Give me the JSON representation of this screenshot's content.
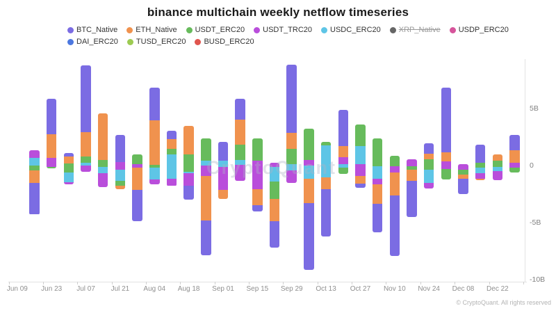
{
  "title": "binance multichain weekly netflow timeseries",
  "watermark": "CryptoQuant",
  "footer": "© CryptoQuant. All rights reserved",
  "legend": {
    "items": [
      {
        "label": "BTC_Native",
        "color": "#7b6ce3",
        "disabled": false
      },
      {
        "label": "ETH_Native",
        "color": "#f0924e",
        "disabled": false
      },
      {
        "label": "USDT_ERC20",
        "color": "#67bb5c",
        "disabled": false
      },
      {
        "label": "USDT_TRC20",
        "color": "#b94edb",
        "disabled": false
      },
      {
        "label": "USDC_ERC20",
        "color": "#5ec5e6",
        "disabled": false
      },
      {
        "label": "XRP_Native",
        "color": "#666666",
        "disabled": true
      },
      {
        "label": "USDP_ERC20",
        "color": "#d6549b",
        "disabled": false
      },
      {
        "label": "DAI_ERC20",
        "color": "#4c78e0",
        "disabled": false
      },
      {
        "label": "TUSD_ERC20",
        "color": "#9dcb52",
        "disabled": false
      },
      {
        "label": "BUSD_ERC20",
        "color": "#e0554e",
        "disabled": false
      }
    ]
  },
  "chart_data": {
    "type": "bar",
    "stacked": true,
    "title": "binance multichain weekly netflow timeseries",
    "xlabel": "",
    "ylabel": "",
    "unit": "B = billions (netflow)",
    "ylim": [
      -10.5,
      9.5
    ],
    "grid": false,
    "legend_position": "top",
    "y_ticks": [
      {
        "label": "5B",
        "value": 5
      },
      {
        "label": "0",
        "value": 0
      },
      {
        "label": "-5B",
        "value": -5
      },
      {
        "label": "-10B",
        "value": -10
      }
    ],
    "x_labels_shown": [
      "Jun 09",
      "Jun 23",
      "Jul 07",
      "Jul 21",
      "Aug 04",
      "Aug 18",
      "Sep 01",
      "Sep 15",
      "Sep 29",
      "Oct 13",
      "Oct 27",
      "Nov 10",
      "Nov 24",
      "Dec 08",
      "Dec 22"
    ],
    "series_colors": {
      "BTC_Native": "#7b6ce3",
      "ETH_Native": "#f0924e",
      "USDT_ERC20": "#67bb5c",
      "USDT_TRC20": "#b94edb",
      "USDC_ERC20": "#5ec5e6",
      "XRP_Native": "#666666",
      "USDP_ERC20": "#d6549b",
      "DAI_ERC20": "#4c78e0",
      "TUSD_ERC20": "#9dcb52",
      "BUSD_ERC20": "#e0554e"
    },
    "note": "Each bar: 'top' = stack-top value in billions above zero; 'segments' listed top-to-bottom with magnitude in billions. Portions below the running zero line are net outflows (negative).",
    "bars": [
      {
        "week": "Jun 09",
        "top": 0,
        "segments": []
      },
      {
        "week": "Jun 16",
        "top": 1.35,
        "segments": [
          {
            "series": "USDT_TRC20",
            "value": 0.65
          },
          {
            "series": "USDC_ERC20",
            "value": 0.7
          },
          {
            "series": "USDT_ERC20",
            "value": 0.45
          },
          {
            "series": "ETH_Native",
            "value": 1.05
          },
          {
            "series": "BTC_Native",
            "value": 2.8
          }
        ]
      },
      {
        "week": "Jun 23",
        "top": 5.85,
        "segments": [
          {
            "series": "BTC_Native",
            "value": 3.1
          },
          {
            "series": "ETH_Native",
            "value": 2.1
          },
          {
            "series": "USDT_TRC20",
            "value": 0.75
          },
          {
            "series": "USDT_ERC20",
            "value": 0.15
          }
        ]
      },
      {
        "week": "Jun 30",
        "top": 1.1,
        "segments": [
          {
            "series": "BTC_Native",
            "value": 0.3
          },
          {
            "series": "ETH_Native",
            "value": 0.6
          },
          {
            "series": "USDT_ERC20",
            "value": 0.8
          },
          {
            "series": "USDC_ERC20",
            "value": 0.85
          },
          {
            "series": "USDT_TRC20",
            "value": 0.2
          }
        ]
      },
      {
        "week": "Jul 07",
        "top": 8.8,
        "segments": [
          {
            "series": "BTC_Native",
            "value": 5.9
          },
          {
            "series": "ETH_Native",
            "value": 2.1
          },
          {
            "series": "USDT_ERC20",
            "value": 0.55
          },
          {
            "series": "USDC_ERC20",
            "value": 0.25
          },
          {
            "series": "USDT_TRC20",
            "value": 0.55
          }
        ]
      },
      {
        "week": "Jul 14",
        "top": 4.6,
        "segments": [
          {
            "series": "ETH_Native",
            "value": 4.1
          },
          {
            "series": "USDT_ERC20",
            "value": 0.6
          },
          {
            "series": "USDC_ERC20",
            "value": 0.55
          },
          {
            "series": "USDT_TRC20",
            "value": 1.25
          }
        ]
      },
      {
        "week": "Jul 21",
        "top": 2.7,
        "segments": [
          {
            "series": "BTC_Native",
            "value": 2.4
          },
          {
            "series": "USDT_TRC20",
            "value": 0.65
          },
          {
            "series": "USDC_ERC20",
            "value": 1.0
          },
          {
            "series": "USDT_ERC20",
            "value": 0.4
          },
          {
            "series": "ETH_Native",
            "value": 0.35
          }
        ]
      },
      {
        "week": "Jul 28",
        "top": 0.95,
        "segments": [
          {
            "series": "USDT_ERC20",
            "value": 0.85
          },
          {
            "series": "USDT_TRC20",
            "value": 0.3
          },
          {
            "series": "ETH_Native",
            "value": 1.95
          },
          {
            "series": "BTC_Native",
            "value": 2.75
          }
        ]
      },
      {
        "week": "Aug 04",
        "top": 6.85,
        "segments": [
          {
            "series": "BTC_Native",
            "value": 2.9
          },
          {
            "series": "ETH_Native",
            "value": 3.9
          },
          {
            "series": "USDT_ERC20",
            "value": 0.25
          },
          {
            "series": "USDC_ERC20",
            "value": 1.05
          },
          {
            "series": "USDT_TRC20",
            "value": 0.4
          }
        ]
      },
      {
        "week": "Aug 11",
        "top": 3.05,
        "segments": [
          {
            "series": "BTC_Native",
            "value": 0.75
          },
          {
            "series": "ETH_Native",
            "value": 0.85
          },
          {
            "series": "USDT_ERC20",
            "value": 0.45
          },
          {
            "series": "USDC_ERC20",
            "value": 2.15
          },
          {
            "series": "USDT_TRC20",
            "value": 0.65
          }
        ]
      },
      {
        "week": "Aug 18",
        "top": 3.45,
        "segments": [
          {
            "series": "ETH_Native",
            "value": 2.5
          },
          {
            "series": "USDT_ERC20",
            "value": 1.5
          },
          {
            "series": "USDC_ERC20",
            "value": 0.15
          },
          {
            "series": "USDT_TRC20",
            "value": 1.1
          },
          {
            "series": "BTC_Native",
            "value": 1.2
          }
        ]
      },
      {
        "week": "Aug 25",
        "top": 2.4,
        "segments": [
          {
            "series": "USDT_ERC20",
            "value": 1.95
          },
          {
            "series": "USDC_ERC20",
            "value": 0.45
          },
          {
            "series": "USDT_TRC20",
            "value": 0.9
          },
          {
            "series": "ETH_Native",
            "value": 3.95
          },
          {
            "series": "BTC_Native",
            "value": 3.0
          }
        ]
      },
      {
        "week": "Sep 01",
        "top": 2.05,
        "segments": [
          {
            "series": "BTC_Native",
            "value": 1.6
          },
          {
            "series": "USDC_ERC20",
            "value": 0.6
          },
          {
            "series": "USDT_TRC20",
            "value": 2.0
          },
          {
            "series": "ETH_Native",
            "value": 0.75
          }
        ]
      },
      {
        "week": "Sep 08",
        "top": 5.85,
        "segments": [
          {
            "series": "BTC_Native",
            "value": 1.85
          },
          {
            "series": "ETH_Native",
            "value": 2.15
          },
          {
            "series": "USDT_ERC20",
            "value": 1.35
          },
          {
            "series": "USDC_ERC20",
            "value": 0.45
          },
          {
            "series": "USDT_TRC20",
            "value": 1.4
          }
        ]
      },
      {
        "week": "Sep 15",
        "top": 2.4,
        "segments": [
          {
            "series": "USDT_ERC20",
            "value": 1.95
          },
          {
            "series": "USDT_TRC20",
            "value": 2.55
          },
          {
            "series": "ETH_Native",
            "value": 1.4
          },
          {
            "series": "BTC_Native",
            "value": 0.5
          }
        ]
      },
      {
        "week": "Sep 22",
        "top": 0.25,
        "segments": [
          {
            "series": "USDT_TRC20",
            "value": 0.4
          },
          {
            "series": "USDC_ERC20",
            "value": 1.25
          },
          {
            "series": "USDT_ERC20",
            "value": 1.5
          },
          {
            "series": "ETH_Native",
            "value": 2.0
          },
          {
            "series": "BTC_Native",
            "value": 2.3
          }
        ]
      },
      {
        "week": "Sep 29",
        "top": 8.85,
        "segments": [
          {
            "series": "BTC_Native",
            "value": 6.0
          },
          {
            "series": "ETH_Native",
            "value": 1.4
          },
          {
            "series": "USDT_ERC20",
            "value": 1.35
          },
          {
            "series": "USDC_ERC20",
            "value": 0.5
          },
          {
            "series": "USDT_TRC20",
            "value": 1.15
          }
        ]
      },
      {
        "week": "Oct 06",
        "top": 3.25,
        "segments": [
          {
            "series": "USDT_ERC20",
            "value": 2.75
          },
          {
            "series": "USDT_TRC20",
            "value": 0.5
          },
          {
            "series": "USDC_ERC20",
            "value": 1.15
          },
          {
            "series": "ETH_Native",
            "value": 2.15
          },
          {
            "series": "BTC_Native",
            "value": 5.85
          }
        ]
      },
      {
        "week": "Oct 13",
        "top": 2.05,
        "segments": [
          {
            "series": "USDT_ERC20",
            "value": 0.3
          },
          {
            "series": "USDC_ERC20",
            "value": 2.8
          },
          {
            "series": "ETH_Native",
            "value": 1.0
          },
          {
            "series": "BTC_Native",
            "value": 4.15
          }
        ]
      },
      {
        "week": "Oct 20",
        "top": 4.9,
        "segments": [
          {
            "series": "BTC_Native",
            "value": 3.2
          },
          {
            "series": "ETH_Native",
            "value": 1.0
          },
          {
            "series": "USDT_TRC20",
            "value": 0.55
          },
          {
            "series": "USDC_ERC20",
            "value": 0.35
          },
          {
            "series": "USDT_ERC20",
            "value": 0.55
          }
        ]
      },
      {
        "week": "Oct 27",
        "top": 3.6,
        "segments": [
          {
            "series": "USDT_ERC20",
            "value": 1.9
          },
          {
            "series": "USDC_ERC20",
            "value": 1.6
          },
          {
            "series": "USDT_TRC20",
            "value": 1.0
          },
          {
            "series": "ETH_Native",
            "value": 0.7
          },
          {
            "series": "BTC_Native",
            "value": 0.35
          }
        ]
      },
      {
        "week": "Nov 03",
        "top": 2.4,
        "segments": [
          {
            "series": "USDT_ERC20",
            "value": 2.45
          },
          {
            "series": "USDC_ERC20",
            "value": 1.1
          },
          {
            "series": "USDT_TRC20",
            "value": 0.5
          },
          {
            "series": "ETH_Native",
            "value": 1.7
          },
          {
            "series": "BTC_Native",
            "value": 2.5
          }
        ]
      },
      {
        "week": "Nov 10",
        "top": 0.85,
        "segments": [
          {
            "series": "USDT_ERC20",
            "value": 0.9
          },
          {
            "series": "USDT_TRC20",
            "value": 0.55
          },
          {
            "series": "ETH_Native",
            "value": 2.0
          },
          {
            "series": "BTC_Native",
            "value": 5.3
          }
        ]
      },
      {
        "week": "Nov 17",
        "top": 0.55,
        "segments": [
          {
            "series": "USDT_TRC20",
            "value": 0.6
          },
          {
            "series": "USDT_ERC20",
            "value": 0.3
          },
          {
            "series": "ETH_Native",
            "value": 1.0
          },
          {
            "series": "BTC_Native",
            "value": 3.15
          }
        ]
      },
      {
        "week": "Nov 24",
        "top": 1.95,
        "segments": [
          {
            "series": "BTC_Native",
            "value": 0.9
          },
          {
            "series": "ETH_Native",
            "value": 0.5
          },
          {
            "series": "USDT_ERC20",
            "value": 0.9
          },
          {
            "series": "USDC_ERC20",
            "value": 1.2
          },
          {
            "series": "USDT_TRC20",
            "value": 0.45
          }
        ]
      },
      {
        "week": "Dec 01",
        "top": 6.85,
        "segments": [
          {
            "series": "BTC_Native",
            "value": 5.7
          },
          {
            "series": "ETH_Native",
            "value": 0.8
          },
          {
            "series": "USDT_TRC20",
            "value": 0.65
          },
          {
            "series": "USDT_ERC20",
            "value": 0.95
          }
        ]
      },
      {
        "week": "Dec 08",
        "top": 0.1,
        "segments": [
          {
            "series": "USDT_TRC20",
            "value": 0.45
          },
          {
            "series": "USDT_ERC20",
            "value": 0.45
          },
          {
            "series": "ETH_Native",
            "value": 0.35
          },
          {
            "series": "BTC_Native",
            "value": 1.35
          }
        ]
      },
      {
        "week": "Dec 15",
        "top": 1.8,
        "segments": [
          {
            "series": "BTC_Native",
            "value": 1.55
          },
          {
            "series": "USDT_ERC20",
            "value": 0.45
          },
          {
            "series": "USDC_ERC20",
            "value": 0.45
          },
          {
            "series": "USDT_TRC20",
            "value": 0.5
          },
          {
            "series": "ETH_Native",
            "value": 0.15
          }
        ]
      },
      {
        "week": "Dec 22",
        "top": 1.0,
        "segments": [
          {
            "series": "ETH_Native",
            "value": 0.6
          },
          {
            "series": "USDT_ERC20",
            "value": 0.5
          },
          {
            "series": "USDC_ERC20",
            "value": 0.4
          },
          {
            "series": "USDT_TRC20",
            "value": 0.8
          }
        ]
      },
      {
        "week": "Dec 29",
        "top": 2.7,
        "segments": [
          {
            "series": "BTC_Native",
            "value": 1.35
          },
          {
            "series": "ETH_Native",
            "value": 1.1
          },
          {
            "series": "USDT_TRC20",
            "value": 0.45
          },
          {
            "series": "USDT_ERC20",
            "value": 0.4
          }
        ]
      }
    ]
  }
}
